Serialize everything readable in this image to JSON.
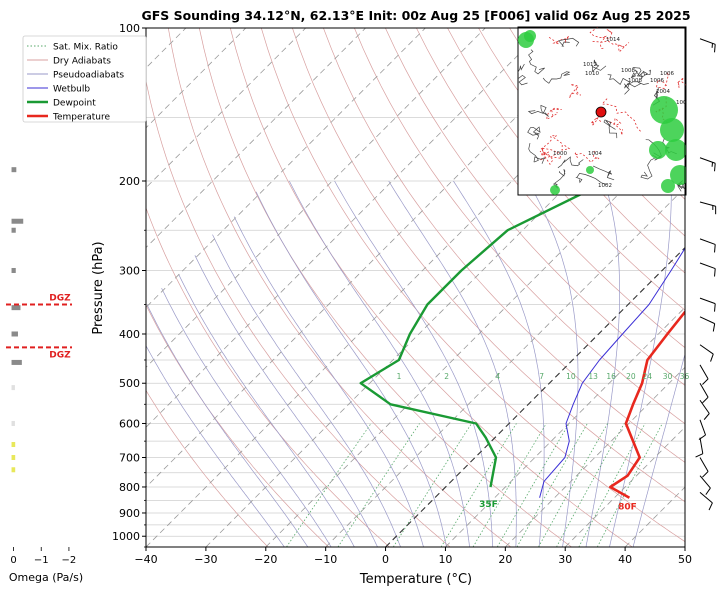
{
  "title": "GFS Sounding 34.12°N, 62.13°E Init: 00z Aug 25 [F006] valid 06z Aug 25 2025",
  "chart_data": {
    "type": "line",
    "subtype": "skew-T log-P sounding",
    "xlabel": "Temperature (°C)",
    "ylabel": "Pressure (hPa)",
    "xlim": [
      -40,
      50
    ],
    "ylim": [
      1050,
      100
    ],
    "y_scale": "log",
    "x_ticks": [
      -40,
      -30,
      -20,
      -10,
      0,
      10,
      20,
      30,
      40,
      50
    ],
    "x_tick_labels": [
      "−40",
      "−30",
      "−20",
      "−10",
      "0",
      "10",
      "20",
      "30",
      "40",
      "50"
    ],
    "y_ticks": [
      100,
      200,
      300,
      400,
      500,
      600,
      700,
      800,
      900,
      1000
    ],
    "y_tick_labels": [
      "100",
      "200",
      "300",
      "400",
      "500",
      "600",
      "700",
      "800",
      "900",
      "1000"
    ],
    "legend": {
      "position": "top-left",
      "entries": [
        "Sat. Mix. Ratio",
        "Dry Adiabats",
        "Pseudoadiabats",
        "Wetbulb",
        "Dewpoint",
        "Temperature"
      ]
    },
    "colors": {
      "temperature": "#e8281e",
      "dewpoint": "#1a9a34",
      "wetbulb": "#3b2fd6",
      "dry_adiabat": "#d8a0a0",
      "pseudoadiabat": "#9a9ac8",
      "mixing_ratio": "#57a86a",
      "isotherm": "#9a9a9a",
      "zero_isotherm": "#333333",
      "dgz": "#e02020"
    },
    "series": [
      {
        "name": "Temperature",
        "points": [
          [
            32.5,
            840
          ],
          [
            27.5,
            800
          ],
          [
            28.5,
            760
          ],
          [
            27.5,
            700
          ],
          [
            19.5,
            600
          ],
          [
            17.5,
            550
          ],
          [
            15.5,
            500
          ],
          [
            12.5,
            450
          ],
          [
            11.5,
            400
          ],
          [
            10.5,
            350
          ],
          [
            7.5,
            300
          ],
          [
            4.5,
            250
          ],
          [
            -2,
            200
          ],
          [
            -8,
            150
          ],
          [
            -9,
            140
          ],
          [
            -10,
            120
          ],
          [
            -10.5,
            100
          ]
        ]
      },
      {
        "name": "Dewpoint",
        "points": [
          [
            7.5,
            800
          ],
          [
            3.5,
            700
          ],
          [
            -1.5,
            640
          ],
          [
            -5.5,
            600
          ],
          [
            -23,
            550
          ],
          [
            -31.5,
            500
          ],
          [
            -29,
            450
          ],
          [
            -31.5,
            400
          ],
          [
            -33.5,
            350
          ],
          [
            -33.5,
            300
          ],
          [
            -32.5,
            250
          ],
          [
            -24,
            200
          ],
          [
            -23,
            180
          ],
          [
            -22,
            150
          ],
          [
            -21,
            130
          ],
          [
            -19,
            100
          ]
        ]
      },
      {
        "name": "Wetbulb",
        "points": [
          [
            17.5,
            840
          ],
          [
            15.5,
            780
          ],
          [
            15,
            700
          ],
          [
            13,
            650
          ],
          [
            9.5,
            600
          ],
          [
            7.5,
            550
          ],
          [
            5.5,
            500
          ],
          [
            4.5,
            450
          ],
          [
            4,
            400
          ],
          [
            3.5,
            350
          ],
          [
            1.5,
            300
          ],
          [
            -1,
            250
          ],
          [
            -5,
            200
          ],
          [
            -9,
            150
          ]
        ]
      }
    ],
    "surface_labels": {
      "temperature": "80F",
      "dewpoint": "35F"
    },
    "mixing_ratio_labels": [
      "1",
      "2",
      "4",
      "7",
      "10",
      "13",
      "16",
      "20",
      "24",
      "30",
      "36"
    ],
    "dgz": {
      "label": "DGZ",
      "pressures": [
        350,
        425
      ]
    },
    "omega": {
      "xlabel": "Omega (Pa/s)",
      "xlim": [
        0.2,
        -2.4
      ],
      "x_ticks": [
        0,
        -1,
        -2
      ],
      "x_tick_labels": [
        "0",
        "−1",
        "−2"
      ],
      "values": [
        [
          0.08,
          250
        ],
        [
          0.08,
          300
        ],
        [
          0.1,
          190
        ],
        [
          0.16,
          400
        ],
        [
          0.25,
          355
        ],
        [
          0.3,
          455
        ],
        [
          0.35,
          240
        ],
        [
          0.05,
          510
        ],
        [
          0.05,
          600
        ],
        [
          0.06,
          660
        ],
        [
          0.06,
          700
        ],
        [
          0.06,
          740
        ]
      ]
    },
    "wind_barbs": [
      {
        "p": 105,
        "dir": 290,
        "kt": 15
      },
      {
        "p": 180,
        "dir": 290,
        "kt": 15
      },
      {
        "p": 220,
        "dir": 285,
        "kt": 15
      },
      {
        "p": 260,
        "dir": 290,
        "kt": 10
      },
      {
        "p": 290,
        "dir": 290,
        "kt": 10
      },
      {
        "p": 340,
        "dir": 290,
        "kt": 10
      },
      {
        "p": 370,
        "dir": 295,
        "kt": 10
      },
      {
        "p": 420,
        "dir": 305,
        "kt": 10
      },
      {
        "p": 460,
        "dir": 330,
        "kt": 10
      },
      {
        "p": 500,
        "dir": 330,
        "kt": 10
      },
      {
        "p": 540,
        "dir": 325,
        "kt": 10
      },
      {
        "p": 590,
        "dir": 340,
        "kt": 10
      },
      {
        "p": 640,
        "dir": 350,
        "kt": 10
      },
      {
        "p": 700,
        "dir": 330,
        "kt": 10
      },
      {
        "p": 760,
        "dir": 320,
        "kt": 10
      },
      {
        "p": 820,
        "dir": 310,
        "kt": 10
      }
    ],
    "inset_map": {
      "contour_labels": [
        "1014",
        "1012",
        "1010",
        "1008",
        "1006",
        "1004",
        "1002",
        "1000",
        "1008",
        "1004",
        "1002",
        "1006"
      ]
    }
  }
}
